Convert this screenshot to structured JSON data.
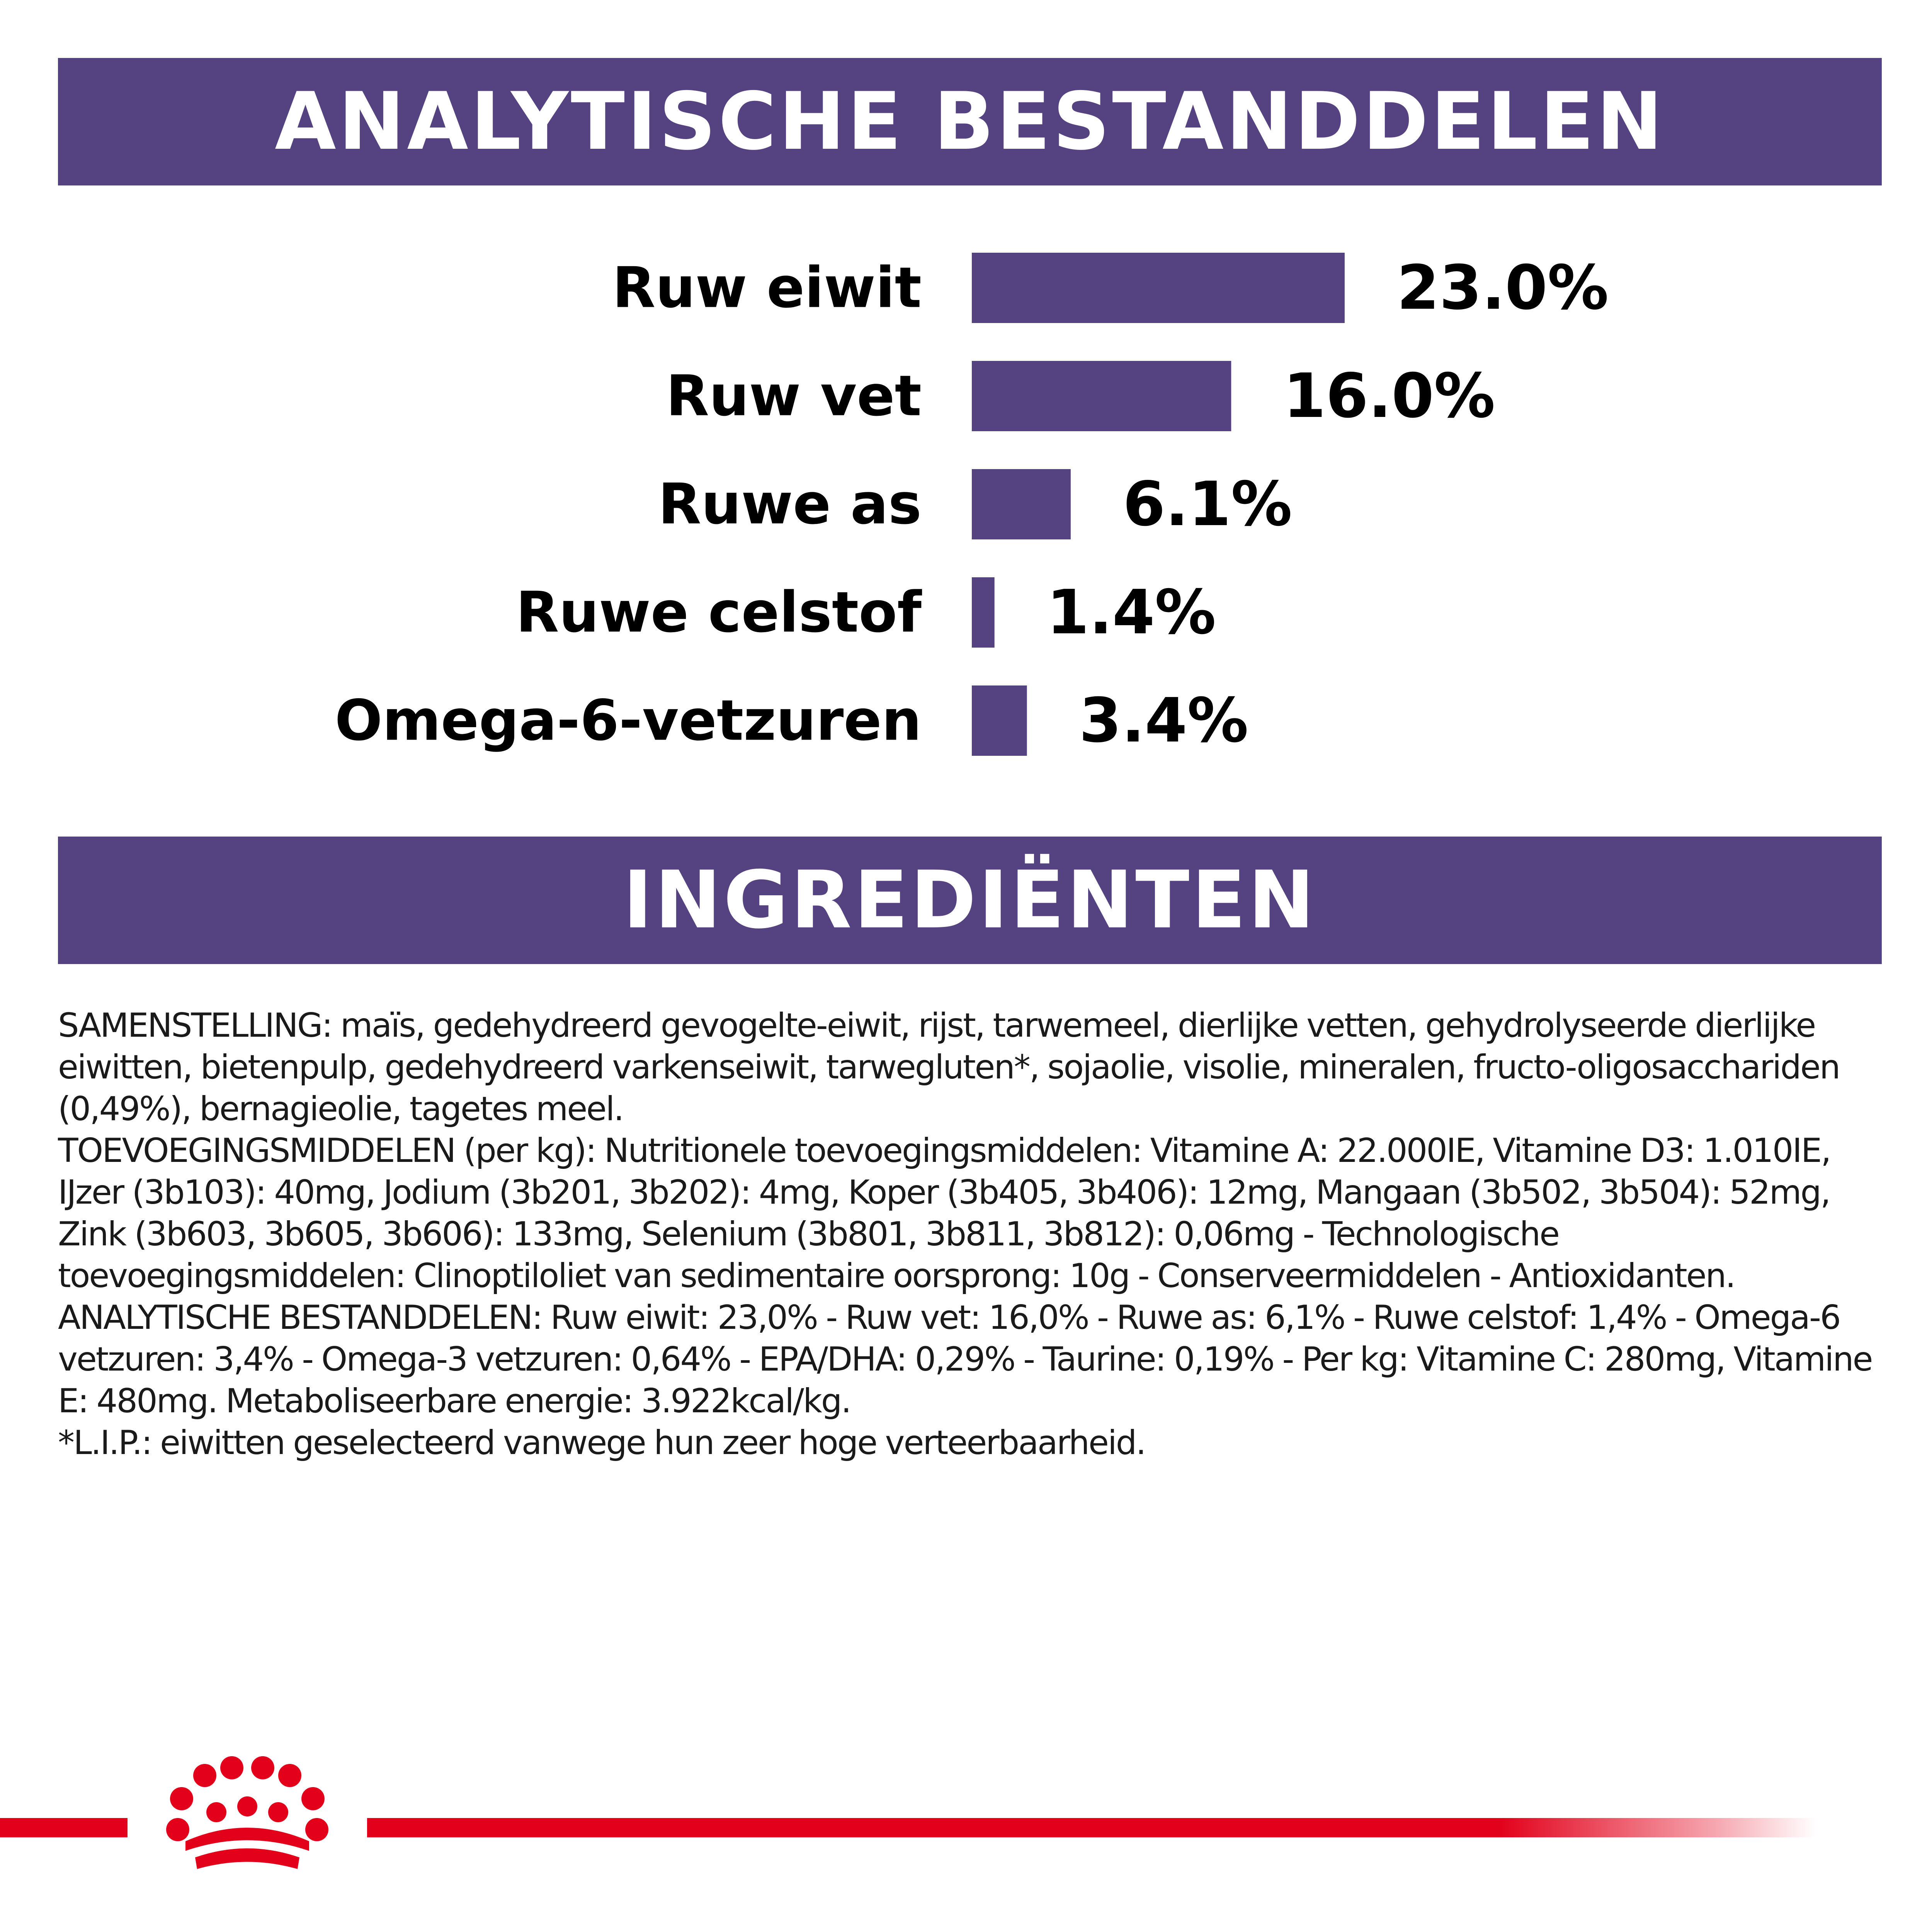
{
  "header_analytics": "ANALYTISCHE BESTANDDELEN",
  "header_ingredients": "INGREDIËNTEN",
  "chart_data": {
    "type": "bar",
    "orientation": "horizontal",
    "categories": [
      "Ruw eiwit",
      "Ruw vet",
      "Ruwe as",
      "Ruwe celstof",
      "Omega-6-vetzuren"
    ],
    "values": [
      23.0,
      16.0,
      6.1,
      1.4,
      3.4
    ],
    "value_labels": [
      "23.0%",
      "16.0%",
      "6.1%",
      "1.4%",
      "3.4%"
    ],
    "unit": "%",
    "bar_color": "#554281",
    "grid": false,
    "legend": "none"
  },
  "ingredients": {
    "paragraphs": [
      "SAMENSTELLING: maïs, gedehydreerd gevogelte-eiwit, rijst, tarwemeel, dierlijke vetten, gehydrolyseerde dierlijke eiwitten, bietenpulp, gedehydreerd varkenseiwit, tarwegluten*, sojaolie, visolie, mineralen, fructo-oligosacchariden (0,49%), bernagieolie, tagetes meel.",
      "TOEVOEGINGSMIDDELEN (per kg): Nutritionele toevoegingsmiddelen: Vitamine A: 22.000IE, Vitamine D3: 1.010IE, IJzer (3b103): 40mg, Jodium (3b201, 3b202): 4mg, Koper (3b405, 3b406): 12mg, Mangaan (3b502, 3b504): 52mg, Zink (3b603, 3b605, 3b606): 133mg, Selenium (3b801, 3b811, 3b812): 0,06mg - Technologische toevoegingsmiddelen: Clinoptiloliet van sedimentaire oorsprong: 10g - Conserveermiddelen - Antioxidanten.",
      "ANALYTISCHE BESTANDDELEN: Ruw eiwit: 23,0% - Ruw vet: 16,0% - Ruwe as: 6,1% - Ruwe celstof: 1,4% - Omega-6 vetzuren: 3,4% - Omega-3 vetzuren: 0,64% - EPA/DHA: 0,29% - Taurine: 0,19% - Per kg: Vitamine C: 280mg, Vitamine E: 480mg. Metaboliseerbare energie: 3.922kcal/kg.",
      "*L.I.P.: eiwitten geselecteerd vanwege hun zeer hoge verteerbaarheid."
    ]
  },
  "brand_color": "#e2001a"
}
